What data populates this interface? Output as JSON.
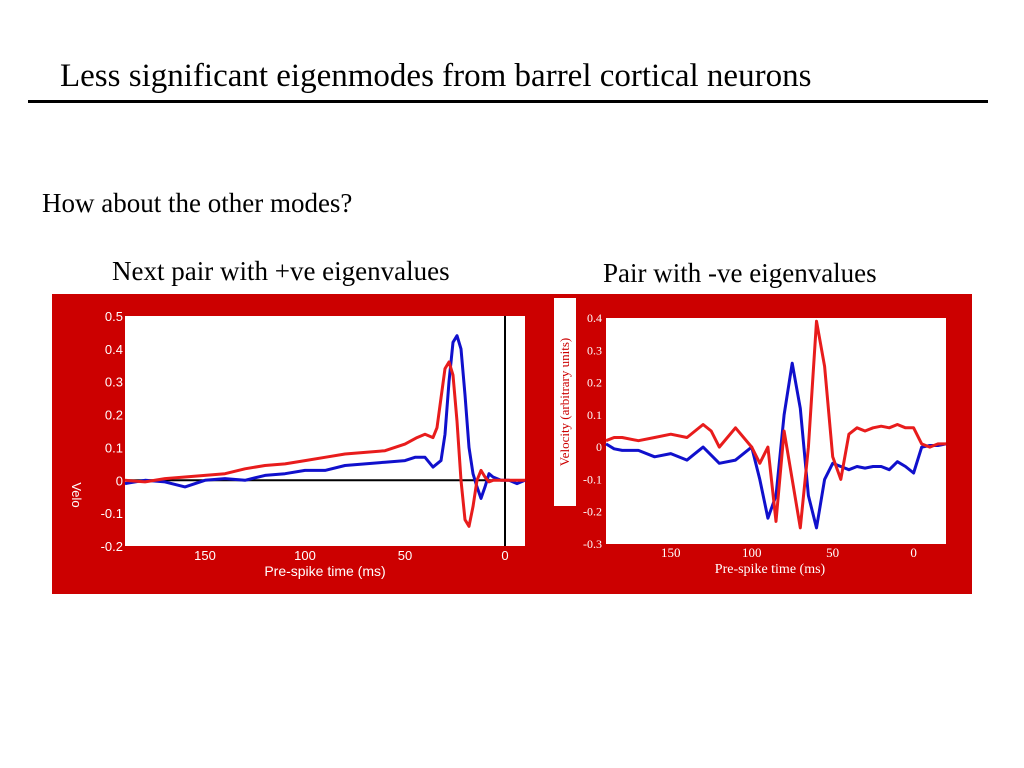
{
  "slide": {
    "title": "Less significant eigenmodes from barrel cortical neurons",
    "question": "How about the other modes?",
    "subtitle_left": "Next pair with +ve eigenvalues",
    "subtitle_right": "Pair with -ve eigenvalues"
  },
  "colors": {
    "background_panel": "#cc0000",
    "plot_area": "#ffffff",
    "series_blue": "#1010cc",
    "series_red": "#e81c1c",
    "axis_label_left": "#ffffff",
    "axis_label_right": "#ffffff"
  },
  "chart_data": [
    {
      "type": "line",
      "xlabel": "Pre-spike time (ms)",
      "ylabel": "Velo",
      "xlim": [
        190,
        -10
      ],
      "ylim": [
        -0.2,
        0.5
      ],
      "x_ticks": [
        150,
        100,
        50,
        0
      ],
      "y_ticks": [
        0.5,
        0.4,
        0.3,
        0.2,
        0.1,
        0,
        -0.1,
        -0.2
      ],
      "x_tick_labels": [
        "150",
        "100",
        "50",
        "0"
      ],
      "y_tick_labels": [
        "0.5",
        "0.4",
        "0.3",
        "0.2",
        "0.1",
        "0",
        "-0.1",
        "-0.2"
      ],
      "reference_lines": {
        "y": 0,
        "x": 0
      },
      "series": [
        {
          "color": "blue",
          "x": [
            190,
            180,
            170,
            160,
            150,
            140,
            130,
            120,
            110,
            100,
            90,
            80,
            70,
            60,
            50,
            45,
            40,
            36,
            32,
            30,
            28,
            26,
            24,
            22,
            20,
            18,
            16,
            14,
            12,
            10,
            8,
            6,
            2,
            -2,
            -6,
            -10
          ],
          "y": [
            -0.01,
            0.0,
            -0.005,
            -0.02,
            0.0,
            0.005,
            0.0,
            0.015,
            0.02,
            0.03,
            0.03,
            0.045,
            0.05,
            0.055,
            0.06,
            0.07,
            0.07,
            0.04,
            0.06,
            0.14,
            0.3,
            0.42,
            0.44,
            0.4,
            0.26,
            0.1,
            0.02,
            -0.02,
            -0.055,
            -0.02,
            0.02,
            0.01,
            0.0,
            0.0,
            -0.01,
            0.0
          ]
        },
        {
          "color": "red",
          "x": [
            190,
            180,
            170,
            160,
            150,
            140,
            130,
            120,
            110,
            100,
            90,
            80,
            70,
            60,
            50,
            44,
            40,
            36,
            34,
            32,
            30,
            28,
            26,
            24,
            22,
            20,
            18,
            16,
            14,
            12,
            10,
            8,
            6,
            2,
            -2,
            -6,
            -10
          ],
          "y": [
            0.0,
            -0.005,
            0.005,
            0.01,
            0.015,
            0.02,
            0.035,
            0.045,
            0.05,
            0.06,
            0.07,
            0.08,
            0.085,
            0.09,
            0.11,
            0.13,
            0.14,
            0.13,
            0.16,
            0.25,
            0.34,
            0.36,
            0.32,
            0.18,
            0.0,
            -0.12,
            -0.14,
            -0.08,
            0.0,
            0.03,
            0.01,
            -0.005,
            0.0,
            0.0,
            0.0,
            0.0,
            0.0
          ]
        }
      ]
    },
    {
      "type": "line",
      "xlabel": "Pre-spike time (ms)",
      "ylabel": "Velocity (arbitrary units)",
      "xlim": [
        190,
        -20
      ],
      "ylim": [
        -0.3,
        0.4
      ],
      "x_ticks": [
        150,
        100,
        50,
        0
      ],
      "y_ticks": [
        0.4,
        0.3,
        0.2,
        0.1,
        0,
        -0.1,
        -0.2,
        -0.3
      ],
      "x_tick_labels": [
        "150",
        "100",
        "50",
        "0"
      ],
      "y_tick_labels": [
        "0.4",
        "0.3",
        "0.2",
        "0.1",
        "0",
        "-0.1",
        "-0.2",
        "-0.3"
      ],
      "series": [
        {
          "color": "blue",
          "x": [
            190,
            185,
            180,
            170,
            160,
            150,
            140,
            135,
            130,
            120,
            110,
            100,
            95,
            90,
            85,
            80,
            75,
            70,
            65,
            60,
            55,
            50,
            45,
            40,
            35,
            30,
            25,
            20,
            15,
            10,
            5,
            0,
            -5,
            -10,
            -15,
            -20
          ],
          "y": [
            0.01,
            -0.005,
            -0.01,
            -0.01,
            -0.03,
            -0.02,
            -0.04,
            -0.02,
            0.0,
            -0.05,
            -0.04,
            0.0,
            -0.1,
            -0.22,
            -0.15,
            0.1,
            0.26,
            0.12,
            -0.15,
            -0.25,
            -0.1,
            -0.05,
            -0.06,
            -0.07,
            -0.06,
            -0.065,
            -0.06,
            -0.06,
            -0.07,
            -0.045,
            -0.06,
            -0.08,
            0.0,
            0.005,
            0.005,
            0.01
          ]
        },
        {
          "color": "red",
          "x": [
            190,
            185,
            180,
            170,
            160,
            150,
            140,
            130,
            125,
            120,
            110,
            100,
            95,
            90,
            85,
            80,
            75,
            70,
            65,
            60,
            55,
            50,
            45,
            40,
            35,
            30,
            25,
            20,
            15,
            10,
            5,
            0,
            -5,
            -10,
            -15,
            -20
          ],
          "y": [
            0.02,
            0.03,
            0.03,
            0.02,
            0.03,
            0.04,
            0.03,
            0.07,
            0.05,
            0.0,
            0.06,
            0.0,
            -0.05,
            0.0,
            -0.23,
            0.05,
            -0.1,
            -0.25,
            0.0,
            0.39,
            0.25,
            -0.03,
            -0.1,
            0.04,
            0.06,
            0.05,
            0.06,
            0.065,
            0.06,
            0.07,
            0.06,
            0.06,
            0.01,
            0.0,
            0.01,
            0.01
          ]
        }
      ]
    }
  ]
}
